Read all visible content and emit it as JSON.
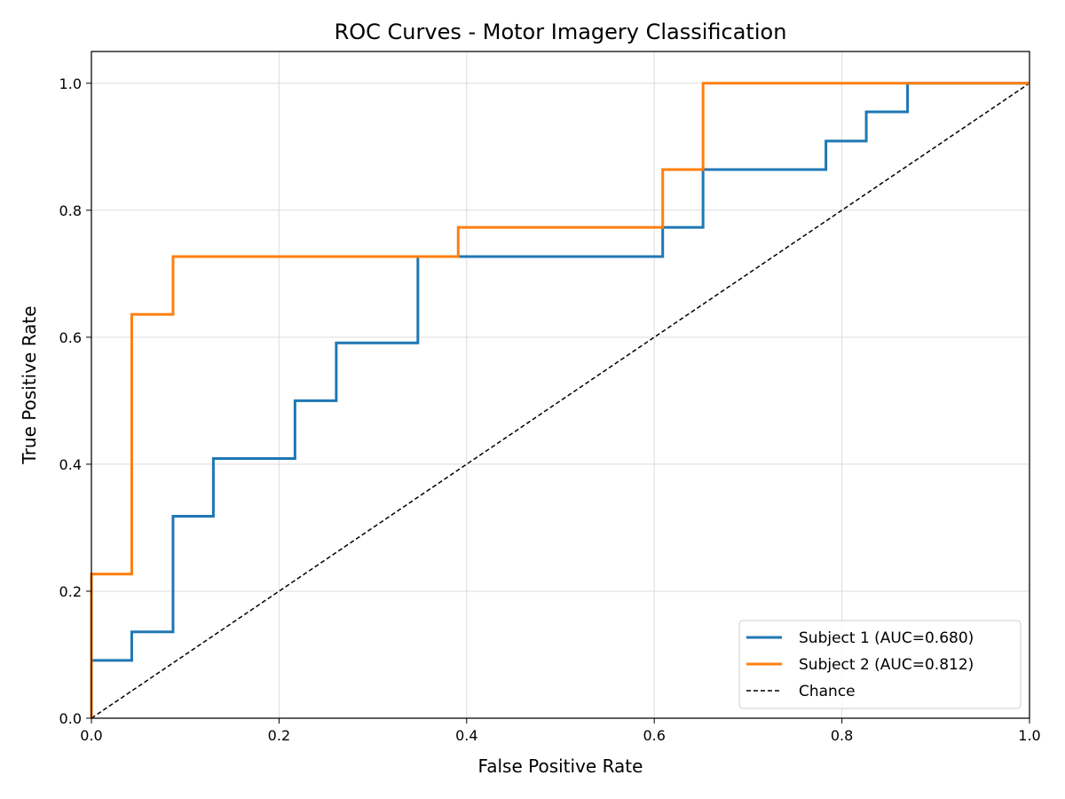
{
  "chart_data": {
    "type": "line",
    "title": "ROC Curves - Motor Imagery Classification",
    "xlabel": "False Positive Rate",
    "ylabel": "True Positive Rate",
    "xlim": [
      0.0,
      1.0
    ],
    "ylim": [
      0.0,
      1.05
    ],
    "xticks": [
      "0.0",
      "0.2",
      "0.4",
      "0.6",
      "0.8",
      "1.0"
    ],
    "yticks": [
      "0.0",
      "0.2",
      "0.4",
      "0.6",
      "0.8",
      "1.0"
    ],
    "grid": true,
    "legend_position": "lower-right",
    "series": [
      {
        "name": "Subject 1 (AUC=0.680)",
        "color": "#1f77b4",
        "style": "solid",
        "points": [
          [
            0.0,
            0.0
          ],
          [
            0.0,
            0.091
          ],
          [
            0.043,
            0.091
          ],
          [
            0.043,
            0.136
          ],
          [
            0.087,
            0.136
          ],
          [
            0.087,
            0.318
          ],
          [
            0.13,
            0.318
          ],
          [
            0.13,
            0.409
          ],
          [
            0.217,
            0.409
          ],
          [
            0.217,
            0.5
          ],
          [
            0.261,
            0.5
          ],
          [
            0.261,
            0.591
          ],
          [
            0.348,
            0.591
          ],
          [
            0.348,
            0.727
          ],
          [
            0.609,
            0.727
          ],
          [
            0.609,
            0.773
          ],
          [
            0.652,
            0.773
          ],
          [
            0.652,
            0.864
          ],
          [
            0.783,
            0.864
          ],
          [
            0.783,
            0.909
          ],
          [
            0.826,
            0.909
          ],
          [
            0.826,
            0.955
          ],
          [
            0.87,
            0.955
          ],
          [
            0.87,
            1.0
          ],
          [
            1.0,
            1.0
          ]
        ]
      },
      {
        "name": "Subject 2 (AUC=0.812)",
        "color": "#ff7f0e",
        "style": "solid",
        "points": [
          [
            0.0,
            0.0
          ],
          [
            0.0,
            0.227
          ],
          [
            0.043,
            0.227
          ],
          [
            0.043,
            0.636
          ],
          [
            0.087,
            0.636
          ],
          [
            0.087,
            0.727
          ],
          [
            0.391,
            0.727
          ],
          [
            0.391,
            0.773
          ],
          [
            0.609,
            0.773
          ],
          [
            0.609,
            0.864
          ],
          [
            0.652,
            0.864
          ],
          [
            0.652,
            1.0
          ],
          [
            1.0,
            1.0
          ]
        ]
      },
      {
        "name": "Chance",
        "color": "#000000",
        "style": "dashed",
        "points": [
          [
            0.0,
            0.0
          ],
          [
            1.0,
            1.0
          ]
        ]
      }
    ]
  }
}
